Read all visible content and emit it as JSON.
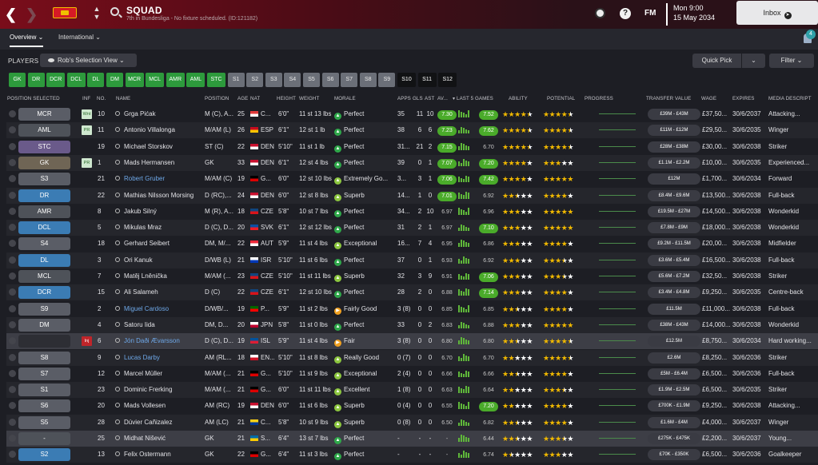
{
  "header": {
    "title": "SQUAD",
    "subtitle": "7th in Bundesliga - No fixture scheduled. (ID:121182)",
    "logo_text": "FM",
    "date_line1": "Mon 9:00",
    "date_line2": "15 May 2034",
    "inbox_label": "Inbox",
    "help_label": "?"
  },
  "tabs": {
    "overview": "Overview",
    "international": "International"
  },
  "notifications": {
    "count": "4"
  },
  "toolbar": {
    "players_label": "PLAYERS",
    "view_label": "Rob's Selection View",
    "quick_pick": "Quick Pick",
    "filter": "Filter"
  },
  "chips": [
    {
      "label": "GK",
      "kind": "g"
    },
    {
      "label": "DR",
      "kind": "g"
    },
    {
      "label": "DCR",
      "kind": "g"
    },
    {
      "label": "DCL",
      "kind": "g"
    },
    {
      "label": "DL",
      "kind": "g"
    },
    {
      "label": "DM",
      "kind": "g"
    },
    {
      "label": "MCR",
      "kind": "g"
    },
    {
      "label": "MCL",
      "kind": "g"
    },
    {
      "label": "AMR",
      "kind": "g"
    },
    {
      "label": "AML",
      "kind": "g"
    },
    {
      "label": "STC",
      "kind": "g"
    },
    {
      "label": "S1",
      "kind": "gr"
    },
    {
      "label": "S2",
      "kind": "gr"
    },
    {
      "label": "S3",
      "kind": "gr"
    },
    {
      "label": "S4",
      "kind": "gr"
    },
    {
      "label": "S5",
      "kind": "gr"
    },
    {
      "label": "S6",
      "kind": "gr"
    },
    {
      "label": "S7",
      "kind": "gr"
    },
    {
      "label": "S8",
      "kind": "gr"
    },
    {
      "label": "S9",
      "kind": "gr"
    },
    {
      "label": "S10",
      "kind": "bk"
    },
    {
      "label": "S11",
      "kind": "bk"
    },
    {
      "label": "S12",
      "kind": "bk"
    }
  ],
  "columns": {
    "pos": "POSITION SELECTED",
    "inf": "INF",
    "no": "NO.",
    "name": "NAME",
    "position": "POSITION",
    "age": "AGE",
    "nat": "NAT",
    "height": "HEIGHT",
    "weight": "WEIGHT",
    "morale": "MORALE",
    "apps": "APPS",
    "gls": "GLS",
    "ast": "AST",
    "av": "AV...",
    "last5": "▾ LAST 5 GAMES",
    "ability": "ABILITY",
    "potential": "POTENTIAL",
    "progress": "PROGRESS",
    "tv": "TRANSFER VALUE",
    "wage": "WAGE",
    "expires": "EXPIRES",
    "media": "MEDIA DESCRIPT"
  },
  "players": [
    {
      "sel": "MCR",
      "selc": "g",
      "inf": "Wnt",
      "no": "10",
      "name": "Grga Pićak",
      "pos": "M (C), A...",
      "age": "25",
      "nat": "C...",
      "natc": [
        "#e03a3a",
        "#ffffff"
      ],
      "h": "6'0\"",
      "w": "11 st 13 lbs",
      "morale": "Perfect",
      "mk": "good",
      "apps": "35",
      "gls": "11",
      "ast": "10",
      "av": "7.30",
      "l5": "7.52",
      "l5hl": true,
      "ab": 4.5,
      "po": 4.5,
      "tv": "£39M - £43M",
      "wage": "£37,50...",
      "exp": "30/6/2037",
      "media": "Attacking..."
    },
    {
      "sel": "AML",
      "selc": "d",
      "inf": "PR",
      "no": "11",
      "name": "Antonio Villalonga",
      "pos": "M/AM (L)",
      "age": "26",
      "nat": "ESP",
      "natc": [
        "#c60b1e",
        "#ffc400"
      ],
      "h": "6'1\"",
      "w": "12 st 1 lb",
      "morale": "Perfect",
      "mk": "good",
      "apps": "38",
      "gls": "6",
      "ast": "6",
      "av": "7.23",
      "l5": "7.62",
      "l5hl": true,
      "ab": 4.5,
      "po": 4.5,
      "tv": "£11M - £12M",
      "wage": "£29,50...",
      "exp": "30/6/2035",
      "media": "Winger"
    },
    {
      "sel": "STC",
      "selc": "p",
      "inf": "",
      "no": "19",
      "name": "Michael Storskov",
      "pos": "ST (C)",
      "age": "22",
      "nat": "DEN",
      "natc": [
        "#c8102e",
        "#ffffff"
      ],
      "h": "5'10\"",
      "w": "11 st 1 lb",
      "morale": "Perfect",
      "mk": "good",
      "apps": "31...",
      "gls": "21",
      "ast": "2",
      "av": "7.15",
      "l5": "6.70",
      "l5hl": false,
      "ab": 4.5,
      "po": 4.5,
      "tv": "£28M - £38M",
      "wage": "£30,00...",
      "exp": "30/6/2038",
      "media": "Striker"
    },
    {
      "sel": "GK",
      "selc": "br",
      "inf": "PR",
      "no": "1",
      "name": "Mads Hermansen",
      "pos": "GK",
      "age": "33",
      "nat": "DEN",
      "natc": [
        "#c8102e",
        "#ffffff"
      ],
      "h": "6'1\"",
      "w": "12 st 4 lbs",
      "morale": "Perfect",
      "mk": "good",
      "apps": "39",
      "gls": "0",
      "ast": "1",
      "av": "7.07",
      "l5": "7.20",
      "l5hl": true,
      "ab": 4,
      "po": 3,
      "tv": "£1.1M - £2.2M",
      "wage": "£10,00...",
      "exp": "30/6/2035",
      "media": "Experienced..."
    },
    {
      "sel": "S3",
      "selc": "g",
      "inf": "",
      "no": "21",
      "name": "Robert Gruber",
      "blue": true,
      "pos": "M/AM (C)",
      "age": "19",
      "nat": "G...",
      "natc": [
        "#000000",
        "#dd0000"
      ],
      "h": "6'0\"",
      "w": "12 st 10 lbs",
      "morale": "Extremely Go...",
      "mk": "ok",
      "apps": "3...",
      "gls": "3",
      "ast": "1",
      "av": "7.06",
      "l5": "7.42",
      "l5hl": true,
      "ab": 4,
      "po": 5,
      "tv": "£12M",
      "wage": "£1,700...",
      "exp": "30/6/2034",
      "media": "Forward"
    },
    {
      "sel": "DR",
      "selc": "b",
      "inf": "",
      "no": "22",
      "name": "Mathias Nilsson Morsing",
      "pos": "D (RC),...",
      "age": "24",
      "nat": "DEN",
      "natc": [
        "#c8102e",
        "#ffffff"
      ],
      "h": "6'0\"",
      "w": "12 st 8 lbs",
      "morale": "Superb",
      "mk": "ok",
      "apps": "14...",
      "gls": "1",
      "ast": "0",
      "av": "7.01",
      "l5": "6.92",
      "l5hl": false,
      "ab": 2.5,
      "po": 4,
      "tv": "£8.4M - £9.6M",
      "wage": "£13,500...",
      "exp": "30/6/2038",
      "media": "Full-back"
    },
    {
      "sel": "AMR",
      "selc": "d",
      "inf": "",
      "no": "8",
      "name": "Jakub Silný",
      "pos": "M (R), A...",
      "age": "18",
      "nat": "CZE",
      "natc": [
        "#11457e",
        "#d7141a"
      ],
      "h": "5'8\"",
      "w": "10 st 7 lbs",
      "morale": "Perfect",
      "mk": "good",
      "apps": "34...",
      "gls": "2",
      "ast": "10",
      "av": "6.97",
      "l5": "6.96",
      "l5hl": false,
      "ab": 3,
      "po": 5,
      "tv": "£19.5M - £27M",
      "wage": "£14,500...",
      "exp": "30/6/2038",
      "media": "Wonderkid"
    },
    {
      "sel": "DCL",
      "selc": "b",
      "inf": "",
      "no": "5",
      "name": "Mikulas Mraz",
      "pos": "D (C), D...",
      "age": "20",
      "nat": "SVK",
      "natc": [
        "#0b4ea2",
        "#ee1c25"
      ],
      "h": "6'1\"",
      "w": "12 st 12 lbs",
      "morale": "Perfect",
      "mk": "good",
      "apps": "31",
      "gls": "2",
      "ast": "1",
      "av": "6.97",
      "l5": "7.10",
      "l5hl": true,
      "ab": 3,
      "po": 5,
      "tv": "£7.8M - £9M",
      "wage": "£18,000...",
      "exp": "30/6/2038",
      "media": "Wonderkid"
    },
    {
      "sel": "S4",
      "selc": "g",
      "inf": "",
      "no": "18",
      "name": "Gerhard Seibert",
      "pos": "DM, M/...",
      "age": "22",
      "nat": "AUT",
      "natc": [
        "#ed2939",
        "#ffffff"
      ],
      "h": "5'9\"",
      "w": "11 st 4 lbs",
      "morale": "Exceptional",
      "mk": "ok",
      "apps": "16...",
      "gls": "7",
      "ast": "4",
      "av": "6.95",
      "l5": "6.86",
      "l5hl": false,
      "ab": 3,
      "po": 4,
      "tv": "£9.2M - £11.5M",
      "wage": "£20,00...",
      "exp": "30/6/2038",
      "media": "Midfielder"
    },
    {
      "sel": "DL",
      "selc": "b",
      "inf": "",
      "no": "3",
      "name": "Ori Kanuk",
      "pos": "D/WB (L)",
      "age": "21",
      "nat": "ISR",
      "natc": [
        "#ffffff",
        "#0038b8"
      ],
      "h": "5'10\"",
      "w": "11 st 6 lbs",
      "morale": "Perfect",
      "mk": "good",
      "apps": "37",
      "gls": "0",
      "ast": "1",
      "av": "6.93",
      "l5": "6.92",
      "l5hl": false,
      "ab": 3,
      "po": 3.5,
      "tv": "£3.6M - £5.4M",
      "wage": "£16,500...",
      "exp": "30/6/2038",
      "media": "Full-back"
    },
    {
      "sel": "MCL",
      "selc": "d",
      "inf": "",
      "no": "7",
      "name": "Matěj Lněnička",
      "pos": "M/AM (...",
      "age": "23",
      "nat": "CZE",
      "natc": [
        "#11457e",
        "#d7141a"
      ],
      "h": "5'10\"",
      "w": "11 st 11 lbs",
      "morale": "Superb",
      "mk": "ok",
      "apps": "32",
      "gls": "3",
      "ast": "9",
      "av": "6.91",
      "l5": "7.06",
      "l5hl": true,
      "ab": 3,
      "po": 3.5,
      "tv": "£5.6M - £7.2M",
      "wage": "£32,50...",
      "exp": "30/6/2038",
      "media": "Striker"
    },
    {
      "sel": "DCR",
      "selc": "b",
      "inf": "",
      "no": "15",
      "name": "Ali Salameh",
      "pos": "D (C)",
      "age": "22",
      "nat": "CZE",
      "natc": [
        "#11457e",
        "#d7141a"
      ],
      "h": "6'1\"",
      "w": "12 st 10 lbs",
      "morale": "Perfect",
      "mk": "good",
      "apps": "28",
      "gls": "2",
      "ast": "0",
      "av": "6.88",
      "l5": "7.14",
      "l5hl": true,
      "ab": 3,
      "po": 4,
      "tv": "£3.4M - £4.8M",
      "wage": "£9,250...",
      "exp": "30/6/2035",
      "media": "Centre-back"
    },
    {
      "sel": "S9",
      "selc": "g",
      "inf": "",
      "no": "2",
      "name": "Miguel Cardoso",
      "blue": true,
      "pos": "D/WB/...",
      "age": "19",
      "nat": "P...",
      "natc": [
        "#006600",
        "#ff0000"
      ],
      "h": "5'9\"",
      "w": "11 st 2 lbs",
      "morale": "Fairly Good",
      "mk": "fair",
      "apps": "3 (8)",
      "gls": "0",
      "ast": "0",
      "av": "6.85",
      "l5": "6.85",
      "l5hl": false,
      "ab": 2.5,
      "po": 4,
      "tv": "£11.5M",
      "wage": "£11,000...",
      "exp": "30/6/2038",
      "media": "Full-back"
    },
    {
      "sel": "DM",
      "selc": "g",
      "inf": "",
      "no": "4",
      "name": "Satoru Iida",
      "pos": "DM, D...",
      "age": "20",
      "nat": "JPN",
      "natc": [
        "#ffffff",
        "#bc002d"
      ],
      "h": "5'8\"",
      "w": "11 st 0 lbs",
      "morale": "Perfect",
      "mk": "good",
      "apps": "33",
      "gls": "0",
      "ast": "2",
      "av": "6.83",
      "l5": "6.88",
      "l5hl": false,
      "ab": 3,
      "po": 5,
      "tv": "£38M - £43M",
      "wage": "£14,000...",
      "exp": "30/6/2038",
      "media": "Wonderkid"
    },
    {
      "sel": "",
      "selc": "e",
      "inf": "Inj",
      "no": "6",
      "name": "Jón Daði Ævarsson",
      "blue": true,
      "pos": "D (C), D...",
      "age": "19",
      "nat": "ISL",
      "natc": [
        "#02529c",
        "#dc1e35"
      ],
      "h": "5'9\"",
      "w": "11 st 4 lbs",
      "morale": "Fair",
      "mk": "fair",
      "apps": "3 (8)",
      "gls": "0",
      "ast": "0",
      "av": "6.80",
      "l5": "6.80",
      "l5hl": false,
      "ab": 2.5,
      "po": 4.5,
      "tv": "£12.5M",
      "wage": "£8,750...",
      "exp": "30/6/2034",
      "media": "Hard working..."
    },
    {
      "sel": "S8",
      "selc": "g",
      "inf": "",
      "no": "9",
      "name": "Lucas Darby",
      "blue": true,
      "pos": "AM (RL...",
      "age": "18",
      "nat": "EN...",
      "natc": [
        "#ffffff",
        "#ce1124"
      ],
      "h": "5'10\"",
      "w": "11 st 8 lbs",
      "morale": "Really Good",
      "mk": "ok",
      "apps": "0 (7)",
      "gls": "0",
      "ast": "0",
      "av": "6.70",
      "l5": "6.70",
      "l5hl": false,
      "ab": 2,
      "po": 4.5,
      "tv": "£2.6M",
      "wage": "£8,250...",
      "exp": "30/6/2036",
      "media": "Striker"
    },
    {
      "sel": "S7",
      "selc": "g",
      "inf": "",
      "no": "12",
      "name": "Marcel Müller",
      "pos": "M/AM (...",
      "age": "21",
      "nat": "G...",
      "natc": [
        "#000000",
        "#dd0000"
      ],
      "h": "5'10\"",
      "w": "11 st 9 lbs",
      "morale": "Exceptional",
      "mk": "ok",
      "apps": "2 (4)",
      "gls": "0",
      "ast": "0",
      "av": "6.66",
      "l5": "6.66",
      "l5hl": false,
      "ab": 2.5,
      "po": 4,
      "tv": "£5M - £6.4M",
      "wage": "£6,500...",
      "exp": "30/6/2036",
      "media": "Full-back"
    },
    {
      "sel": "S1",
      "selc": "g",
      "inf": "",
      "no": "23",
      "name": "Dominic Frerking",
      "pos": "M/AM (...",
      "age": "21",
      "nat": "G...",
      "natc": [
        "#000000",
        "#dd0000"
      ],
      "h": "6'0\"",
      "w": "11 st 11 lbs",
      "morale": "Excellent",
      "mk": "ok",
      "apps": "1 (8)",
      "gls": "0",
      "ast": "0",
      "av": "6.63",
      "l5": "6.64",
      "l5hl": false,
      "ab": 2,
      "po": 3.5,
      "tv": "£1.9M - £2.5M",
      "wage": "£6,500...",
      "exp": "30/6/2035",
      "media": "Striker"
    },
    {
      "sel": "S6",
      "selc": "g",
      "inf": "",
      "no": "20",
      "name": "Mads Vollesen",
      "pos": "AM (RC)",
      "age": "19",
      "nat": "DEN",
      "natc": [
        "#c8102e",
        "#ffffff"
      ],
      "h": "6'0\"",
      "w": "11 st 6 lbs",
      "morale": "Superb",
      "mk": "ok",
      "apps": "0 (4)",
      "gls": "0",
      "ast": "0",
      "av": "6.55",
      "l5": "7.20",
      "l5hl": true,
      "ab": 2,
      "po": 4,
      "tv": "£700K - £1.9M",
      "wage": "£9,250...",
      "exp": "30/6/2038",
      "media": "Attacking..."
    },
    {
      "sel": "S5",
      "selc": "g",
      "inf": "",
      "no": "28",
      "name": "Dúvier Cañizalez",
      "pos": "AM (LC)",
      "age": "21",
      "nat": "C...",
      "natc": [
        "#fcd116",
        "#003893"
      ],
      "h": "5'8\"",
      "w": "10 st 9 lbs",
      "morale": "Superb",
      "mk": "ok",
      "apps": "0 (8)",
      "gls": "0",
      "ast": "0",
      "av": "6.50",
      "l5": "6.82",
      "l5hl": false,
      "ab": 2.5,
      "po": 4,
      "tv": "£1.6M - £4M",
      "wage": "£4,000...",
      "exp": "30/6/2037",
      "media": "Winger"
    },
    {
      "sel": "-",
      "selc": "d",
      "inf": "",
      "no": "25",
      "name": "Midhat Nišević",
      "pos": "GK",
      "age": "21",
      "nat": "S...",
      "natc": [
        "#006aa7",
        "#fecc00"
      ],
      "h": "6'4\"",
      "w": "13 st 7 lbs",
      "morale": "Perfect",
      "mk": "good",
      "apps": "-",
      "gls": "-",
      "ast": "-",
      "av": "-",
      "l5": "6.44",
      "l5hl": false,
      "ab": 2.5,
      "po": 3.5,
      "tv": "£275K - £475K",
      "wage": "£2,200...",
      "exp": "30/6/2037",
      "media": "Young..."
    },
    {
      "sel": "S2",
      "selc": "b",
      "inf": "",
      "no": "13",
      "name": "Felix Ostermann",
      "pos": "GK",
      "age": "22",
      "nat": "G...",
      "natc": [
        "#000000",
        "#dd0000"
      ],
      "h": "6'4\"",
      "w": "11 st 3 lbs",
      "morale": "Perfect",
      "mk": "good",
      "apps": "-",
      "gls": "-",
      "ast": "-",
      "av": "-",
      "l5": "6.74",
      "l5hl": false,
      "ab": 1.5,
      "po": 3,
      "tv": "£70K - £350K",
      "wage": "£6,500...",
      "exp": "30/6/2036",
      "media": "Goalkeeper"
    }
  ]
}
